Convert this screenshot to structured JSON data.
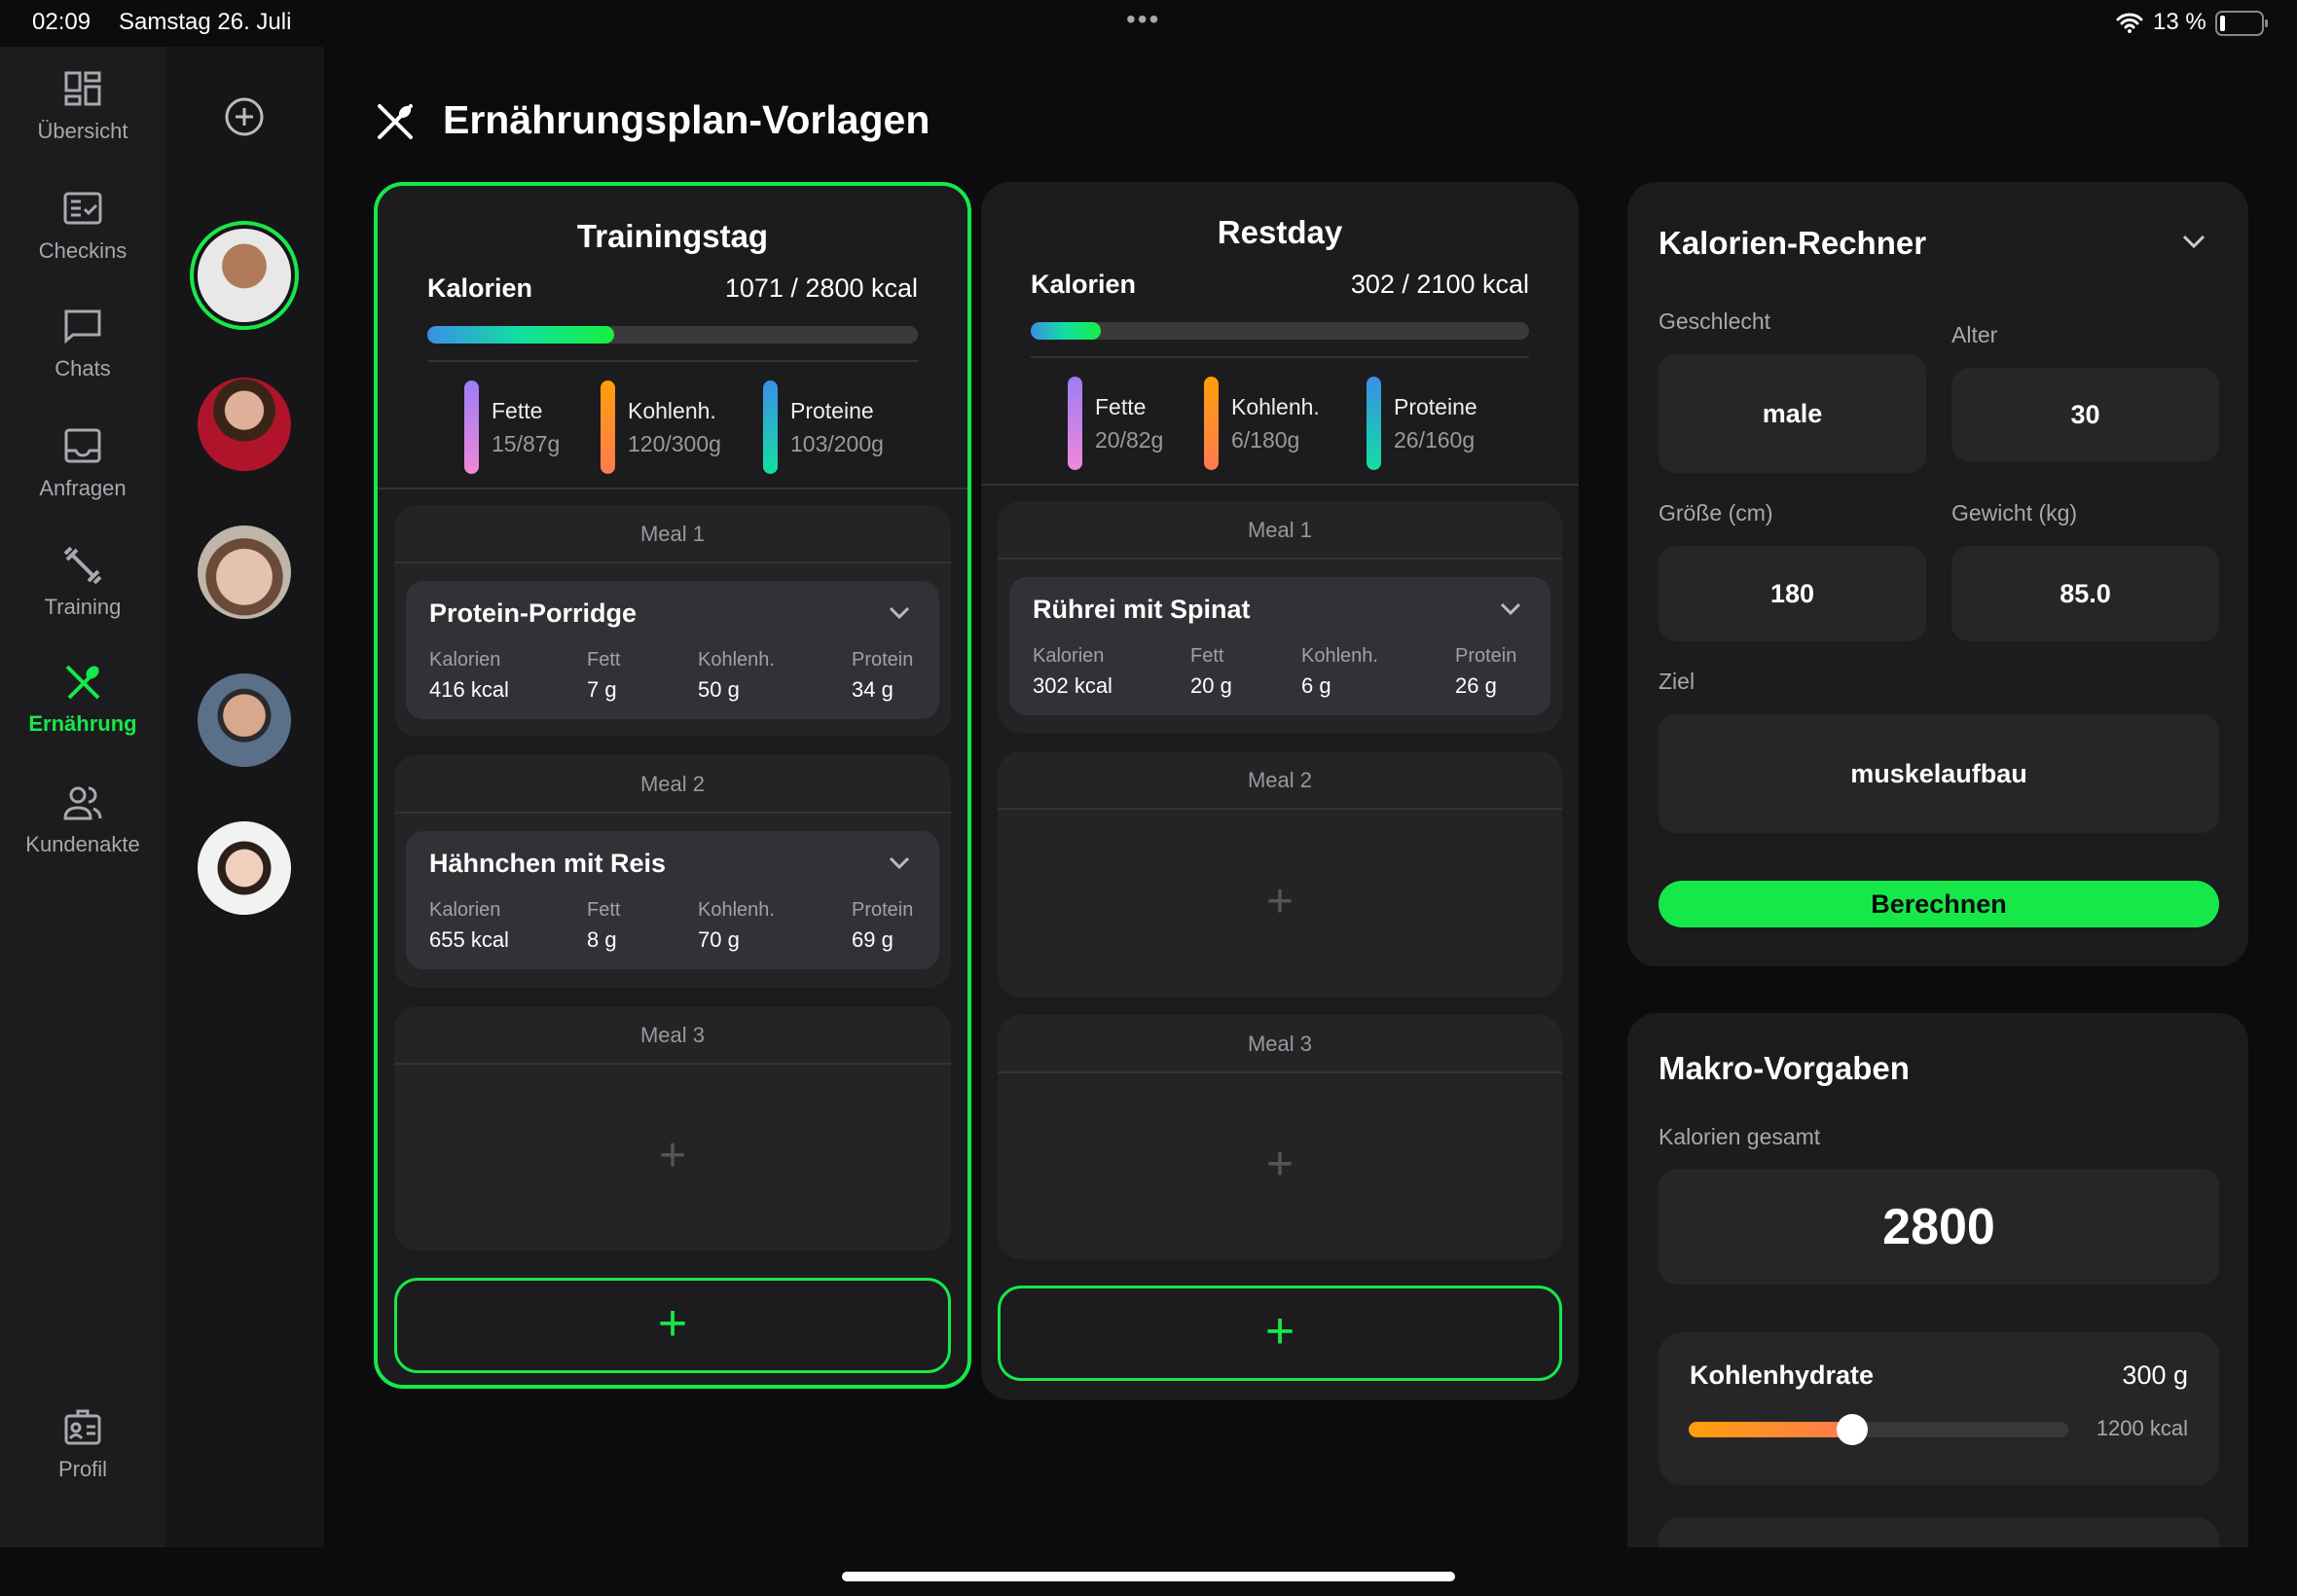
{
  "status": {
    "time": "02:09",
    "date": "Samstag 26. Juli",
    "battery": "13 %"
  },
  "nav": [
    {
      "label": "Übersicht",
      "icon": "dashboard-icon"
    },
    {
      "label": "Checkins",
      "icon": "checkin-icon"
    },
    {
      "label": "Chats",
      "icon": "chat-icon"
    },
    {
      "label": "Anfragen",
      "icon": "inbox-icon"
    },
    {
      "label": "Training",
      "icon": "dumbbell-icon"
    },
    {
      "label": "Ernährung",
      "icon": "fork-spoon-icon",
      "active": true
    },
    {
      "label": "Kundenakte",
      "icon": "users-icon"
    }
  ],
  "profile": {
    "label": "Profil",
    "icon": "id-badge-icon"
  },
  "accent": "#17e84a",
  "page_title": "Ernährungsplan-Vorlagen",
  "plans": [
    {
      "title": "Trainingstag",
      "selected": true,
      "kcal_label": "Kalorien",
      "kcal_value": "1071 / 2800 kcal",
      "kcal_progress": 0.38,
      "macros": [
        {
          "name": "Fette",
          "value": "15/87g"
        },
        {
          "name": "Kohlenh.",
          "value": "120/300g"
        },
        {
          "name": "Proteine",
          "value": "103/200g"
        }
      ],
      "meals": [
        {
          "title": "Meal 1",
          "item": {
            "name": "Protein-Porridge",
            "stats": [
              {
                "label": "Kalorien",
                "value": "416 kcal"
              },
              {
                "label": "Fett",
                "value": "7 g"
              },
              {
                "label": "Kohlenh.",
                "value": "50 g"
              },
              {
                "label": "Protein",
                "value": "34 g"
              }
            ]
          }
        },
        {
          "title": "Meal 2",
          "item": {
            "name": "Hähnchen mit Reis",
            "stats": [
              {
                "label": "Kalorien",
                "value": "655 kcal"
              },
              {
                "label": "Fett",
                "value": "8 g"
              },
              {
                "label": "Kohlenh.",
                "value": "70 g"
              },
              {
                "label": "Protein",
                "value": "69 g"
              }
            ]
          }
        },
        {
          "title": "Meal 3",
          "item": null
        }
      ]
    },
    {
      "title": "Restday",
      "selected": false,
      "kcal_label": "Kalorien",
      "kcal_value": "302 / 2100 kcal",
      "kcal_progress": 0.14,
      "macros": [
        {
          "name": "Fette",
          "value": "20/82g"
        },
        {
          "name": "Kohlenh.",
          "value": "6/180g"
        },
        {
          "name": "Proteine",
          "value": "26/160g"
        }
      ],
      "meals": [
        {
          "title": "Meal 1",
          "item": {
            "name": "Rührei mit Spinat",
            "stats": [
              {
                "label": "Kalorien",
                "value": "302 kcal"
              },
              {
                "label": "Fett",
                "value": "20 g"
              },
              {
                "label": "Kohlenh.",
                "value": "6 g"
              },
              {
                "label": "Protein",
                "value": "26 g"
              }
            ]
          }
        },
        {
          "title": "Meal 2",
          "item": null
        },
        {
          "title": "Meal 3",
          "item": null
        }
      ]
    }
  ],
  "calculator": {
    "title": "Kalorien-Rechner",
    "gender_label": "Geschlecht",
    "gender": "male",
    "age_label": "Alter",
    "age": "30",
    "height_label": "Größe (cm)",
    "height": "180",
    "weight_label": "Gewicht (kg)",
    "weight": "85.0",
    "goal_label": "Ziel",
    "goal": "muskelaufbau",
    "button": "Berechnen"
  },
  "macros_panel": {
    "title": "Makro-Vorgaben",
    "total_label": "Kalorien gesamt",
    "total": "2800",
    "carbs": {
      "label": "Kohlenhydrate",
      "grams": "300 g",
      "kcal": "1200 kcal",
      "slider": 0.43
    }
  }
}
